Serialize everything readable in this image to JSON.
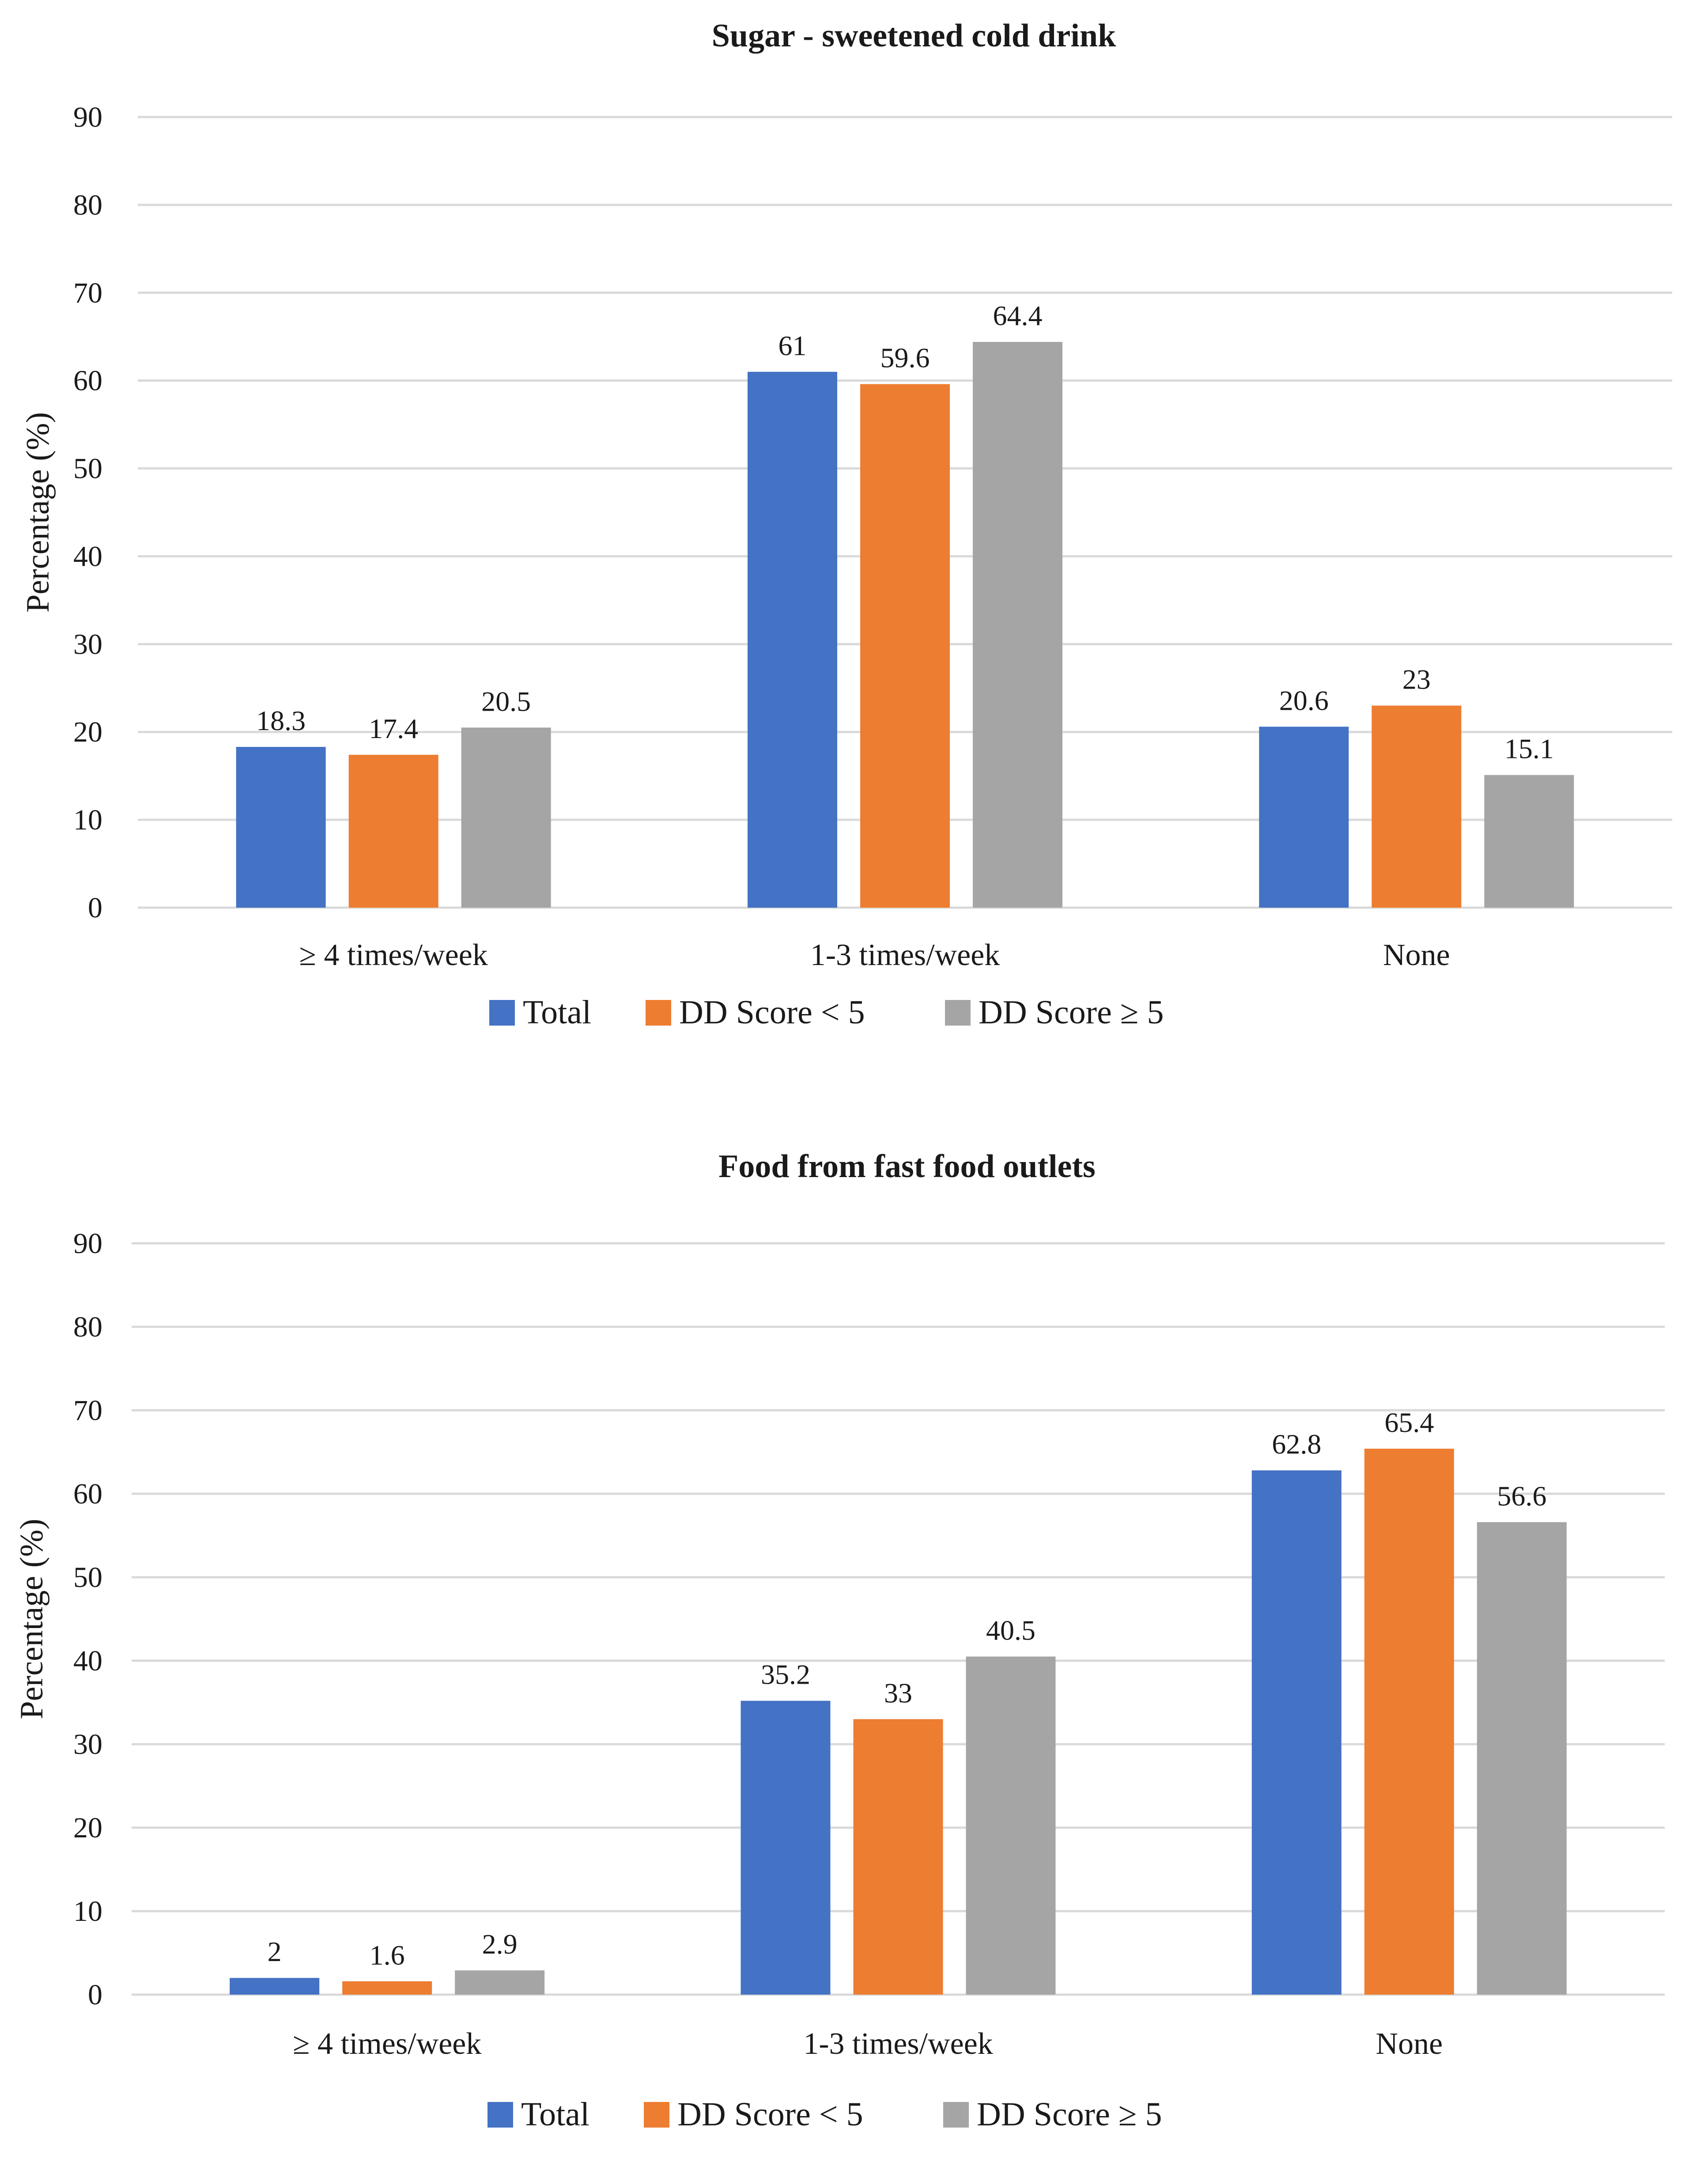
{
  "chart_data": [
    {
      "type": "bar",
      "title": "Sugar - sweetened cold drink",
      "xlabel": "",
      "ylabel": "Percentage (%)",
      "ylim": [
        0,
        90
      ],
      "yticks": [
        0,
        10,
        20,
        30,
        40,
        50,
        60,
        70,
        80,
        90
      ],
      "grid": true,
      "legend": "bottom",
      "categories": [
        "≥ 4 times/week",
        "1-3 times/week",
        "None"
      ],
      "series": [
        {
          "name": "Total",
          "color": "#4472C4",
          "values": [
            18.3,
            61,
            20.6
          ]
        },
        {
          "name": "DD Score < 5",
          "color": "#ED7D31",
          "values": [
            17.4,
            59.6,
            23
          ]
        },
        {
          "name": "DD Score ≥ 5",
          "color": "#A5A5A5",
          "values": [
            20.5,
            64.4,
            15.1
          ]
        }
      ]
    },
    {
      "type": "bar",
      "title": "Food from fast food outlets",
      "xlabel": "",
      "ylabel": "Percentage (%)",
      "ylim": [
        0,
        90
      ],
      "yticks": [
        0,
        10,
        20,
        30,
        40,
        50,
        60,
        70,
        80,
        90
      ],
      "grid": true,
      "legend": "bottom",
      "categories": [
        "≥ 4 times/week",
        "1-3 times/week",
        "None"
      ],
      "series": [
        {
          "name": "Total",
          "color": "#4472C4",
          "values": [
            2,
            35.2,
            62.8
          ]
        },
        {
          "name": "DD Score < 5",
          "color": "#ED7D31",
          "values": [
            1.6,
            33,
            65.4
          ]
        },
        {
          "name": "DD Score ≥ 5",
          "color": "#A5A5A5",
          "values": [
            2.9,
            40.5,
            56.6
          ]
        }
      ]
    }
  ]
}
